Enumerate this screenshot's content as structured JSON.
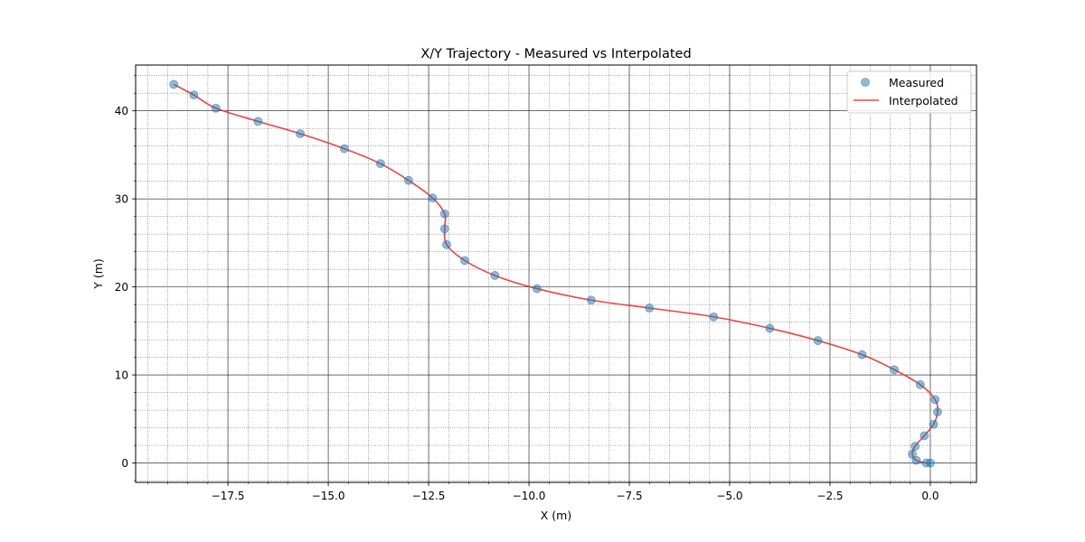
{
  "chart_data": {
    "type": "scatter",
    "title": "X/Y Trajectory - Measured vs Interpolated",
    "xlabel": "X (m)",
    "ylabel": "Y (m)",
    "xlim": [
      -19.8,
      1.15
    ],
    "ylim": [
      -2.2,
      45.2
    ],
    "x_ticks": [
      -17.5,
      -15.0,
      -12.5,
      -10.0,
      -7.5,
      -5.0,
      -2.5,
      0.0
    ],
    "x_tick_labels": [
      "−17.5",
      "−15.0",
      "−12.5",
      "−10.0",
      "−7.5",
      "−5.0",
      "−2.5",
      "0.0"
    ],
    "y_ticks": [
      0,
      10,
      20,
      30,
      40
    ],
    "y_tick_labels": [
      "0",
      "10",
      "20",
      "30",
      "40"
    ],
    "grid": true,
    "minor_grid": true,
    "legend_position": "top-right",
    "series": [
      {
        "name": "Measured",
        "kind": "scatter",
        "color": "#1f77b4",
        "x": [
          0.0,
          -0.1,
          -0.35,
          -0.45,
          -0.38,
          -0.15,
          0.08,
          0.18,
          0.12,
          -0.25,
          -0.9,
          -1.7,
          -2.8,
          -4.0,
          -5.4,
          -7.0,
          -8.45,
          -9.8,
          -10.85,
          -11.6,
          -12.05,
          -12.1,
          -12.1,
          -12.4,
          -13.0,
          -13.7,
          -14.6,
          -15.7,
          -16.75,
          -17.8,
          -18.35,
          -18.85
        ],
        "y": [
          0.0,
          0.0,
          0.3,
          1.0,
          1.9,
          3.1,
          4.4,
          5.8,
          7.2,
          8.9,
          10.6,
          12.3,
          13.9,
          15.3,
          16.6,
          17.6,
          18.5,
          19.8,
          21.3,
          23.0,
          24.8,
          26.6,
          28.3,
          30.1,
          32.1,
          34.0,
          35.7,
          37.4,
          38.8,
          40.3,
          41.8,
          43.0
        ]
      },
      {
        "name": "Interpolated",
        "kind": "line",
        "color": "#e8312f",
        "x": [
          0.0,
          -0.1,
          -0.35,
          -0.45,
          -0.38,
          -0.15,
          0.08,
          0.18,
          0.12,
          -0.25,
          -0.9,
          -1.7,
          -2.8,
          -4.0,
          -5.4,
          -7.0,
          -8.45,
          -9.8,
          -10.85,
          -11.6,
          -12.05,
          -12.1,
          -12.1,
          -12.4,
          -13.0,
          -13.7,
          -14.6,
          -15.7,
          -16.75,
          -17.8,
          -18.35,
          -18.85
        ],
        "y": [
          0.0,
          0.0,
          0.3,
          1.0,
          1.9,
          3.1,
          4.4,
          5.8,
          7.2,
          8.9,
          10.6,
          12.3,
          13.9,
          15.3,
          16.6,
          17.6,
          18.5,
          19.8,
          21.3,
          23.0,
          24.8,
          26.6,
          28.3,
          30.1,
          32.1,
          34.0,
          35.7,
          37.4,
          38.8,
          40.3,
          41.8,
          43.0
        ]
      }
    ]
  }
}
